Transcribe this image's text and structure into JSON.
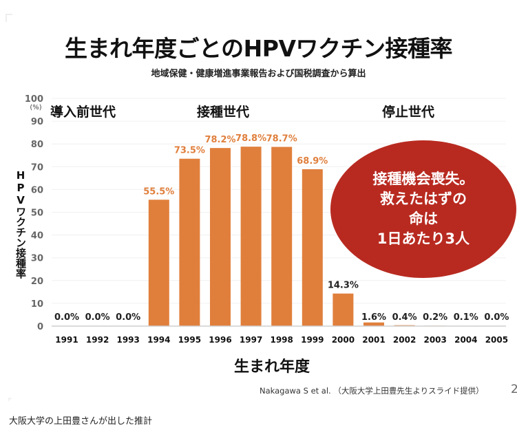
{
  "caption": "大阪大学の上田豊さんが出した推計",
  "slide": {
    "title": "生まれ年度ごとのHPVワクチン接種率",
    "subtitle": "地域保健・健康増進事業報告および国税調査から算出",
    "generations": [
      {
        "label": "導入前世代"
      },
      {
        "label": "接種世代"
      },
      {
        "label": "停止世代"
      }
    ],
    "callout": {
      "lines": [
        "接種機会喪失。",
        "救えたはずの",
        "命は",
        "1日あたり3人"
      ]
    },
    "citation": "Nakagawa S et al. （大阪大学上田豊先生よりスライド提供）",
    "page_number": "2"
  },
  "chart_data": {
    "type": "bar",
    "title": "生まれ年度ごとのHPVワクチン接種率",
    "subtitle": "地域保健・健康増進事業報告および国税調査から算出",
    "xlabel": "生まれ年度",
    "ylabel": "HPVワクチン接種率",
    "yunit": "(%)",
    "ylim": [
      0,
      100
    ],
    "yticks": [
      0,
      10,
      20,
      30,
      40,
      50,
      60,
      70,
      80,
      90,
      100
    ],
    "grid": true,
    "categories": [
      "1991",
      "1992",
      "1993",
      "1994",
      "1995",
      "1996",
      "1997",
      "1998",
      "1999",
      "2000",
      "2001",
      "2002",
      "2003",
      "2004",
      "2005"
    ],
    "values": [
      0.0,
      0.0,
      0.0,
      55.5,
      73.5,
      78.2,
      78.8,
      78.7,
      68.9,
      14.3,
      1.6,
      0.4,
      0.2,
      0.1,
      0.0
    ],
    "data_labels": [
      "0.0%",
      "0.0%",
      "0.0%",
      "55.5%",
      "73.5%",
      "78.2%",
      "78.8%",
      "78.7%",
      "68.9%",
      "14.3%",
      "1.6%",
      "0.4%",
      "0.2%",
      "0.1%",
      "0.0%"
    ],
    "label_colors": [
      "#222222",
      "#222222",
      "#222222",
      "#e07f3c",
      "#e07f3c",
      "#e07f3c",
      "#e07f3c",
      "#e07f3c",
      "#e07f3c",
      "#222222",
      "#222222",
      "#222222",
      "#222222",
      "#222222",
      "#222222"
    ],
    "bar_color": "#e07f3c",
    "callout_color": "#b82a20"
  }
}
